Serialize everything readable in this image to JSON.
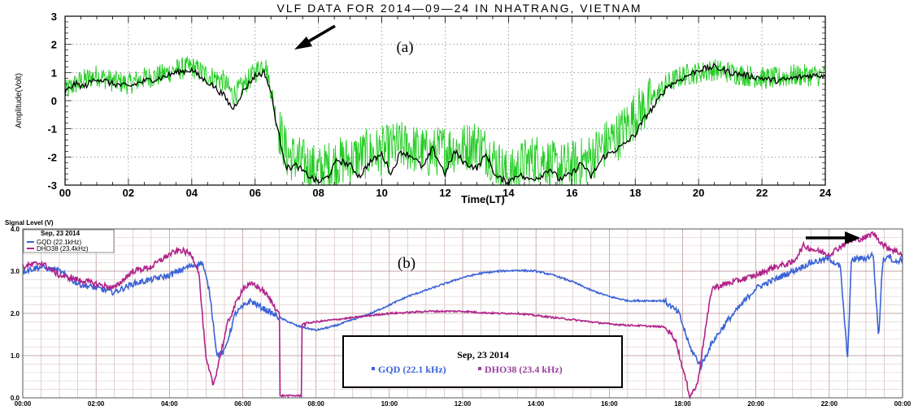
{
  "chart_data": [
    {
      "type": "line",
      "title": "VLF DATA FOR 2014—09—24 IN NHATRANG, VIETNAM",
      "panel_label": "(a)",
      "xlabel": "Time(LT)",
      "ylabel": "Amplitude(Volt)",
      "xlim": [
        0,
        24
      ],
      "ylim": [
        -3,
        3
      ],
      "x_ticks": [
        "00",
        "02",
        "04",
        "06",
        "08",
        "10",
        "12",
        "14",
        "16",
        "18",
        "20",
        "22",
        "24"
      ],
      "y_ticks": [
        "-3",
        "-2",
        "-1",
        "0",
        "1",
        "2",
        "3"
      ],
      "grid": "dotted",
      "series": [
        {
          "color": "#22cc22",
          "style": "noisy-raw",
          "x": [
            0,
            0.2,
            0.5,
            1,
            1.5,
            2,
            2.5,
            3,
            3.5,
            4,
            4.5,
            5,
            5.3,
            5.6,
            6,
            6.3,
            6.5,
            6.7,
            7,
            7.5,
            8,
            8.5,
            9,
            9.5,
            10,
            10.5,
            11,
            11.5,
            12,
            12.5,
            13,
            13.5,
            14,
            14.5,
            15,
            15.5,
            16,
            16.5,
            17,
            17.5,
            18,
            18.5,
            19,
            19.5,
            20,
            20.5,
            21,
            21.5,
            22,
            22.5,
            23,
            23.5,
            24
          ],
          "y": [
            0.3,
            0.5,
            0.7,
            0.9,
            0.7,
            0.6,
            0.8,
            0.9,
            1.1,
            1.2,
            0.9,
            0.7,
            0.2,
            0.5,
            1.0,
            1.4,
            0.4,
            -0.8,
            -1.9,
            -2.2,
            -2.5,
            -2.2,
            -2.1,
            -1.9,
            -1.8,
            -1.6,
            -1.7,
            -1.9,
            -1.7,
            -1.7,
            -1.5,
            -2.0,
            -2.7,
            -2.2,
            -2.0,
            -2.4,
            -2.3,
            -2.1,
            -1.6,
            -1.2,
            -0.5,
            0.0,
            0.6,
            0.9,
            1.0,
            1.1,
            1.0,
            0.9,
            0.8,
            0.8,
            0.9,
            0.9,
            0.9
          ]
        },
        {
          "color": "#000000",
          "style": "smoothed",
          "x": [
            0,
            0.3,
            0.6,
            1,
            1.5,
            2,
            2.5,
            3,
            3.5,
            4,
            4.3,
            4.6,
            5,
            5.3,
            5.6,
            6,
            6.3,
            6.5,
            6.7,
            7,
            7.3,
            7.6,
            8,
            8.3,
            8.6,
            9,
            9.3,
            9.6,
            10,
            10.3,
            10.6,
            11,
            11.3,
            11.6,
            12,
            12.3,
            12.6,
            13,
            13.3,
            13.6,
            14,
            14.3,
            14.6,
            15,
            15.3,
            15.6,
            16,
            16.3,
            16.6,
            17,
            17.3,
            17.6,
            18,
            18.3,
            18.6,
            19,
            19.5,
            20,
            20.5,
            21,
            21.5,
            22,
            22.5,
            23,
            23.5,
            24
          ],
          "y": [
            0.3,
            0.6,
            0.5,
            0.8,
            0.6,
            0.5,
            0.7,
            0.8,
            1.0,
            1.1,
            0.8,
            0.6,
            0.2,
            -0.3,
            0.3,
            0.9,
            1.0,
            0.3,
            -1.0,
            -2.4,
            -2.3,
            -2.6,
            -2.9,
            -2.7,
            -2.1,
            -2.3,
            -2.7,
            -2.2,
            -1.9,
            -2.6,
            -1.8,
            -2.0,
            -2.4,
            -1.7,
            -2.6,
            -1.8,
            -2.2,
            -2.4,
            -1.9,
            -2.7,
            -2.9,
            -2.6,
            -2.8,
            -2.7,
            -2.4,
            -2.8,
            -2.6,
            -2.2,
            -2.7,
            -2.0,
            -1.8,
            -1.6,
            -1.2,
            -0.6,
            -0.2,
            0.5,
            0.8,
            1.1,
            1.2,
            1.0,
            0.9,
            0.8,
            0.7,
            0.8,
            0.9,
            0.9
          ]
        }
      ],
      "annotations": [
        {
          "type": "arrow",
          "direction": "down-left",
          "target_x": 6.3,
          "target_y": 2.0
        }
      ]
    },
    {
      "type": "line",
      "title": "Sep, 23 2014",
      "panel_label": "(b)",
      "ylabel": "Signal Level (V)",
      "xlim": [
        0,
        24
      ],
      "ylim": [
        0,
        4
      ],
      "x_ticks": [
        "00:00",
        "02:00",
        "04:00",
        "06:00",
        "08:00",
        "10:00",
        "12:00",
        "14:00",
        "16:00",
        "18:00",
        "20:00",
        "22:00",
        "00:00"
      ],
      "y_ticks": [
        "0.0",
        "1.0",
        "2.0",
        "3.0",
        "4.0"
      ],
      "grid": "solid",
      "legend_small": {
        "title": "Sep, 23 2014",
        "items": [
          "GQD (22.1kHz)",
          "DHO38 (23.4kHz)"
        ]
      },
      "legend_box": {
        "title": "Sep, 23 2014",
        "items": [
          "GQD (22.1 kHz)",
          "DHO38 (23.4 kHz)"
        ]
      },
      "series": [
        {
          "name": "GQD (22.1kHz)",
          "color": "#3b63d6",
          "x": [
            0,
            0.5,
            1,
            1.5,
            2,
            2.5,
            3,
            3.5,
            4,
            4.5,
            4.9,
            5.1,
            5.3,
            5.5,
            5.8,
            6.2,
            6.6,
            7,
            7.5,
            8,
            8.5,
            9,
            9.5,
            10,
            10.5,
            11,
            11.5,
            12,
            12.5,
            13,
            13.5,
            14,
            14.5,
            15,
            15.5,
            16,
            16.5,
            17,
            17.5,
            17.9,
            18.2,
            18.5,
            18.8,
            19.2,
            19.6,
            20,
            20.5,
            21,
            21.5,
            22,
            22.3,
            22.5,
            22.6,
            22.7,
            23,
            23.2,
            23.35,
            23.45,
            23.6,
            23.8,
            24
          ],
          "y": [
            3.0,
            3.1,
            3.0,
            2.7,
            2.6,
            2.5,
            2.7,
            2.8,
            2.9,
            3.1,
            3.2,
            2.5,
            1.0,
            1.1,
            2.0,
            2.3,
            2.1,
            1.9,
            1.7,
            1.6,
            1.7,
            1.85,
            2.0,
            2.2,
            2.4,
            2.55,
            2.7,
            2.85,
            2.95,
            3.0,
            3.02,
            3.0,
            2.9,
            2.75,
            2.55,
            2.4,
            2.3,
            2.3,
            2.3,
            2.0,
            1.2,
            0.75,
            1.3,
            1.8,
            2.2,
            2.6,
            2.8,
            3.0,
            3.2,
            3.3,
            3.1,
            0.9,
            3.2,
            3.3,
            3.3,
            3.4,
            1.4,
            3.2,
            3.4,
            3.2,
            3.3
          ]
        },
        {
          "name": "DHO38 (23.4kHz)",
          "color": "#b0238a",
          "x": [
            0,
            0.5,
            1,
            1.5,
            2,
            2.5,
            3,
            3.5,
            4,
            4.3,
            4.6,
            4.8,
            5.0,
            5.2,
            5.6,
            6.0,
            6.3,
            6.6,
            7.0,
            7.01,
            7.6,
            7.61,
            8,
            8.5,
            9,
            9.5,
            10,
            10.5,
            11,
            11.5,
            12,
            12.5,
            13,
            13.5,
            14,
            14.5,
            15,
            15.5,
            16,
            16.5,
            17,
            17.5,
            17.8,
            18.0,
            18.2,
            18.4,
            18.6,
            18.8,
            19.2,
            19.6,
            20,
            20.5,
            21,
            21.3,
            21.6,
            22,
            22.5,
            23,
            23.2,
            23.5,
            24
          ],
          "y": [
            3.1,
            3.2,
            2.9,
            2.8,
            2.7,
            2.6,
            3.0,
            3.1,
            3.4,
            3.5,
            3.4,
            3.0,
            0.9,
            0.3,
            1.8,
            2.6,
            2.7,
            2.5,
            2.0,
            0.05,
            0.05,
            1.75,
            1.8,
            1.85,
            1.9,
            1.95,
            2.0,
            2.02,
            2.05,
            2.05,
            2.05,
            2.02,
            2.0,
            2.0,
            1.95,
            1.9,
            1.85,
            1.8,
            1.75,
            1.72,
            1.7,
            1.68,
            1.4,
            0.7,
            0.05,
            0.3,
            1.5,
            2.6,
            2.7,
            2.8,
            2.9,
            3.1,
            3.2,
            3.6,
            3.5,
            3.4,
            3.7,
            3.8,
            3.9,
            3.6,
            3.4
          ]
        }
      ],
      "annotations": [
        {
          "type": "arrow",
          "direction": "right",
          "x_from": 21.1,
          "x_to": 23.0,
          "y": 3.8
        }
      ]
    }
  ]
}
